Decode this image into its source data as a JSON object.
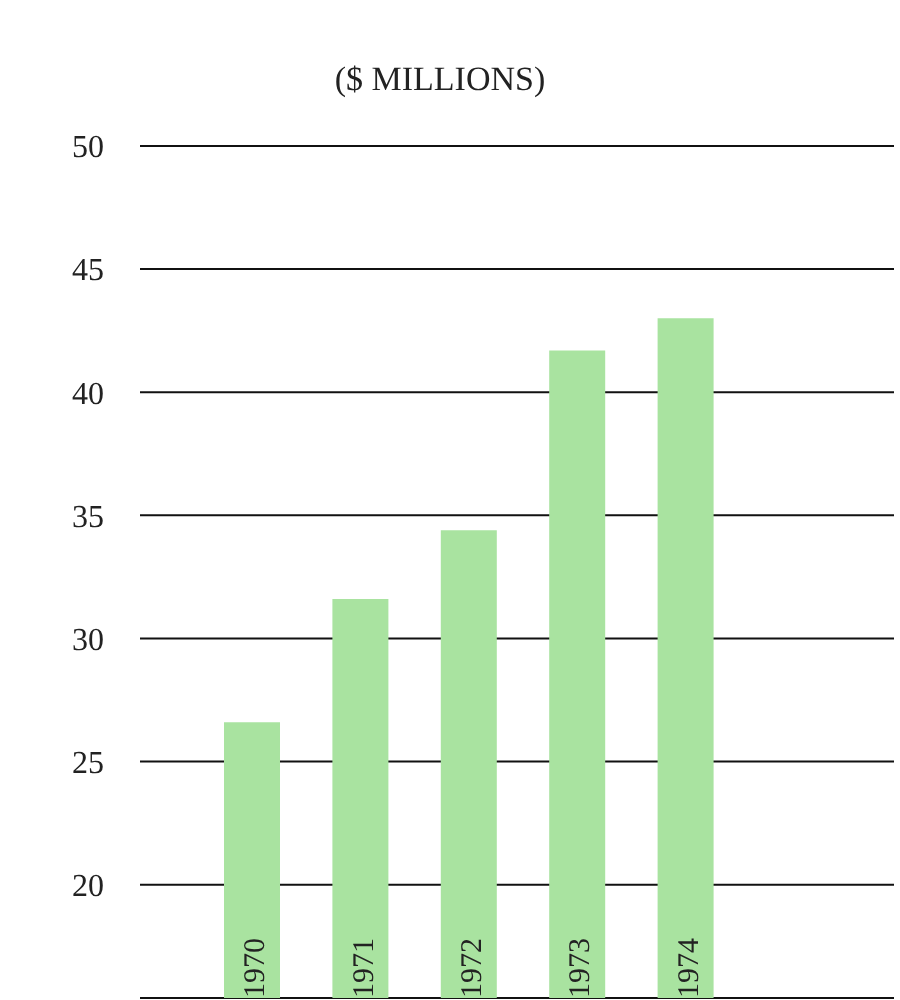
{
  "chart_data": {
    "type": "bar",
    "title": "($ MILLIONS)",
    "categories": [
      "1970",
      "1971",
      "1972",
      "1973",
      "1974"
    ],
    "values": [
      26.6,
      31.6,
      34.4,
      41.7,
      43.0
    ],
    "color": "#a9e3a0",
    "ylim": [
      15.4,
      50
    ],
    "yticks": [
      20,
      25,
      30,
      35,
      40,
      45,
      50
    ],
    "grid": "y"
  }
}
